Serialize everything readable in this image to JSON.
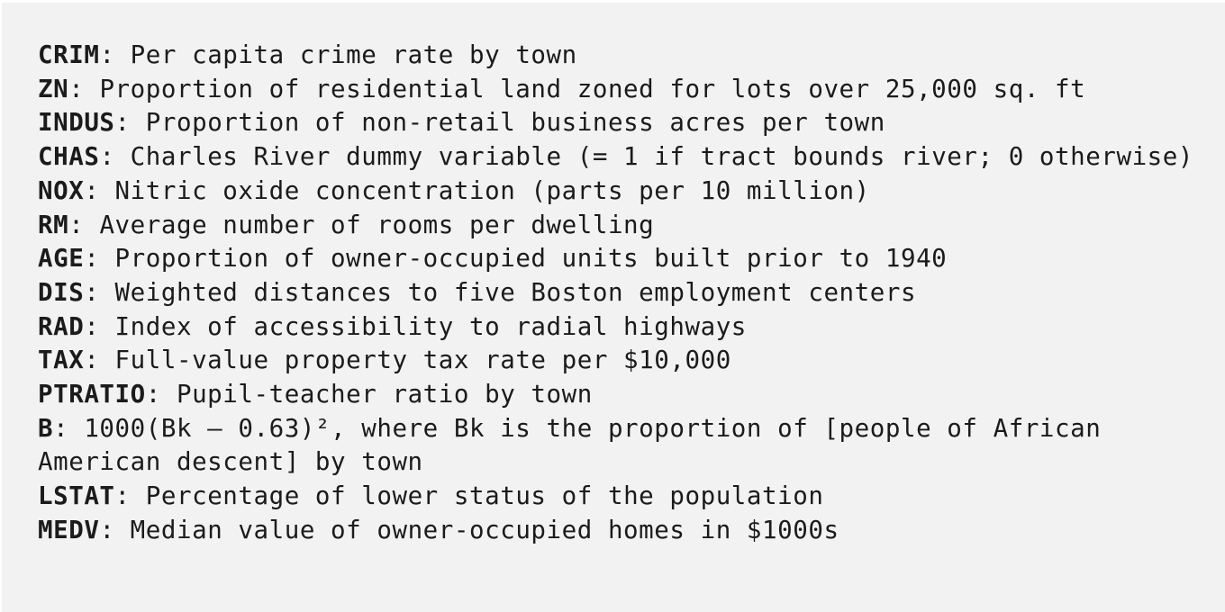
{
  "definitions": [
    {
      "term": "CRIM",
      "separator": ": ",
      "text": "Per capita crime rate by town"
    },
    {
      "term": "ZN",
      "separator": ": ",
      "text": "Proportion of residential land zoned for lots over 25,000 sq. ft"
    },
    {
      "term": "INDUS",
      "separator": ": ",
      "text": "Proportion of non-retail business acres per town"
    },
    {
      "term": "CHAS",
      "separator": ": ",
      "text": "Charles River dummy variable (= 1 if tract bounds river; 0 otherwise)"
    },
    {
      "term": "NOX",
      "separator": ": ",
      "text": "Nitric oxide concentration (parts per 10 million)"
    },
    {
      "term": "RM",
      "separator": ": ",
      "text": "Average number of rooms per dwelling"
    },
    {
      "term": "AGE",
      "separator": ": ",
      "text": "Proportion of owner-occupied units built prior to 1940"
    },
    {
      "term": "DIS",
      "separator": ": ",
      "text": "Weighted distances to five Boston employment centers"
    },
    {
      "term": "RAD",
      "separator": ": ",
      "text": "Index of accessibility to radial highways"
    },
    {
      "term": "TAX",
      "separator": ": ",
      "text": "Full-value property tax rate per $10,000"
    },
    {
      "term": "PTRATIO",
      "separator": ": ",
      "text": "Pupil-teacher ratio by town"
    },
    {
      "term": "B",
      "separator": ": ",
      "text": "1000(Bk — 0.63)², where Bk is the proportion of [people of African American descent] by town"
    },
    {
      "term": "LSTAT",
      "separator": ": ",
      "text": "Percentage of lower status of the population"
    },
    {
      "term": "MEDV",
      "separator": ": ",
      "text": "Median value of owner-occupied homes in $1000s"
    }
  ]
}
